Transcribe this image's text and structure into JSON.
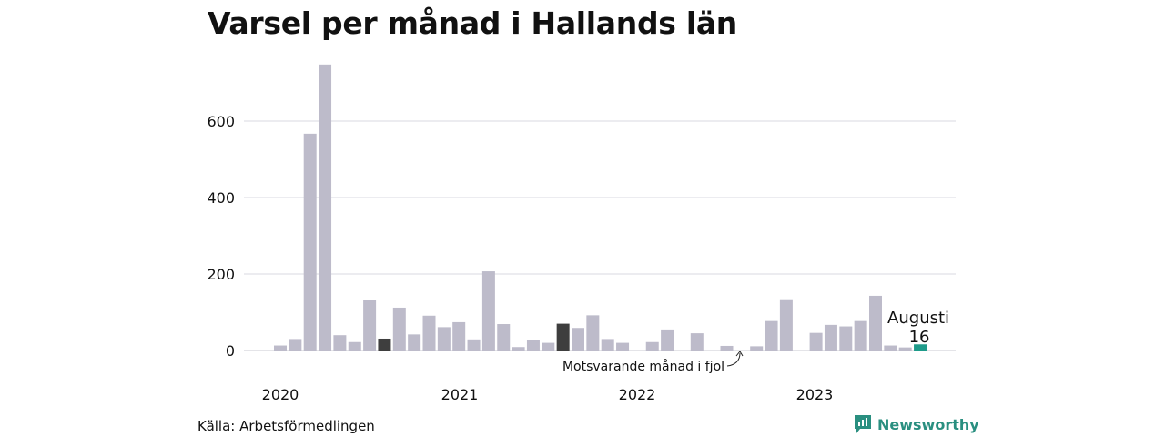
{
  "title": "Varsel per månad i Hallands län",
  "source": "Källa: Arbetsförmedlingen",
  "brand": "Newsworthy",
  "colors": {
    "bar": "#bdbbca",
    "same_month_last_year": "#3e3e3e",
    "current": "#1e9b8a",
    "grid": "#d9d9e0",
    "brand": "#2a8f80"
  },
  "chart_data": {
    "type": "bar",
    "ylim": [
      0,
      750
    ],
    "yticks": [
      0,
      200,
      400,
      600
    ],
    "year_labels": [
      "2020",
      "2021",
      "2022",
      "2023"
    ],
    "values": [
      13,
      30,
      567,
      748,
      40,
      22,
      133,
      31,
      112,
      42,
      91,
      61,
      74,
      29,
      207,
      69,
      9,
      27,
      20,
      70,
      59,
      92,
      30,
      20,
      0,
      22,
      55,
      0,
      45,
      0,
      12,
      0,
      11,
      77,
      134,
      0,
      46,
      67,
      63,
      77,
      143,
      13,
      8,
      16
    ],
    "highlight_dark_index": [
      7,
      19
    ],
    "highlight_current_index": 43,
    "annotations": {
      "current_month": "Augusti",
      "current_value": "16",
      "last_year_note": "Motsvarande månad i fjol"
    }
  }
}
